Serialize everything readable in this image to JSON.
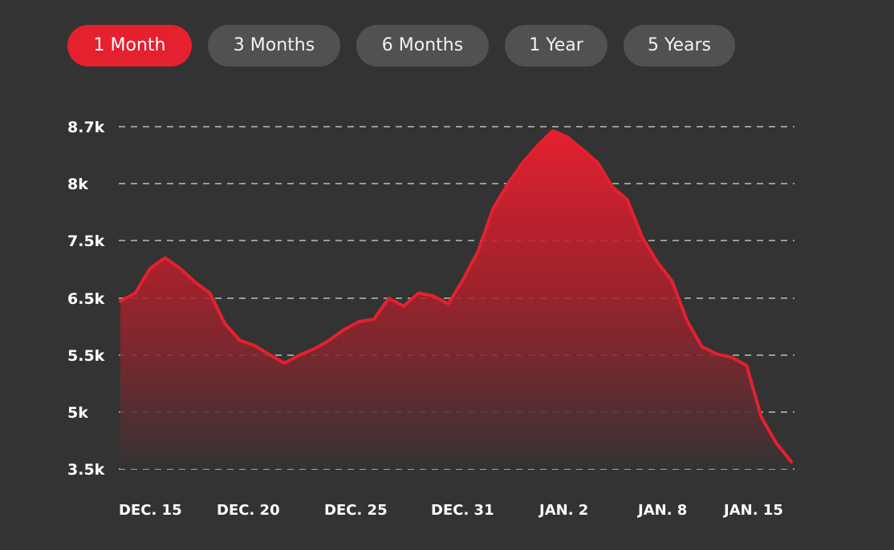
{
  "range_tabs": [
    {
      "label": "1 Month",
      "active": true
    },
    {
      "label": "3 Months",
      "active": false
    },
    {
      "label": "6 Months",
      "active": false
    },
    {
      "label": "1 Year",
      "active": false
    },
    {
      "label": "5 Years",
      "active": false
    }
  ],
  "colors": {
    "background": "#333333",
    "accent": "#e5202f",
    "tab_inactive": "#515151",
    "grid": "#9a9a9a",
    "text": "#ffffff"
  },
  "chart_data": {
    "type": "area",
    "title": "",
    "xlabel": "",
    "ylabel": "",
    "grid": true,
    "grid_style": "dashed",
    "y_ticks": [
      "8.7k",
      "8k",
      "7.5k",
      "6.5k",
      "5.5k",
      "5k",
      "3.5k"
    ],
    "x_ticks": [
      "DEC. 15",
      "DEC. 20",
      "DEC. 25",
      "DEC. 31",
      "JAN. 2",
      "JAN. 8",
      "JAN. 15"
    ],
    "series": [
      {
        "color": "#e5202f",
        "points": [
          {
            "x": "DEC. 15",
            "y": 6.45
          },
          {
            "y": 6.59
          },
          {
            "y": 7.02
          },
          {
            "y": 7.2
          },
          {
            "y": 7.02
          },
          {
            "y": 6.78
          },
          {
            "y": 6.59
          },
          {
            "x": "DEC. 20",
            "y": 6.06
          },
          {
            "y": 5.76
          },
          {
            "y": 5.67
          },
          {
            "y": 5.51
          },
          {
            "y": 5.43
          },
          {
            "y": 5.5
          },
          {
            "y": 5.61
          },
          {
            "y": 5.76
          },
          {
            "x": "DEC. 25",
            "y": 5.95
          },
          {
            "y": 6.09
          },
          {
            "y": 6.13
          },
          {
            "y": 6.5
          },
          {
            "y": 6.36
          },
          {
            "y": 6.59
          },
          {
            "y": 6.54
          },
          {
            "y": 6.4
          },
          {
            "x": "DEC. 31",
            "y": 6.83
          },
          {
            "y": 7.32
          },
          {
            "y": 7.78
          },
          {
            "y": 8.0
          },
          {
            "y": 8.26
          },
          {
            "y": 8.47
          },
          {
            "x": "JAN. 2",
            "y": 8.65
          },
          {
            "y": 8.57
          },
          {
            "y": 8.42
          },
          {
            "y": 8.26
          },
          {
            "y": 7.97
          },
          {
            "x": "JAN. 8",
            "y": 7.86
          },
          {
            "y": 7.53
          },
          {
            "y": 7.13
          },
          {
            "y": 6.8
          },
          {
            "y": 6.11
          },
          {
            "y": 5.65
          },
          {
            "y": 5.52
          },
          {
            "y": 5.48
          },
          {
            "y": 5.41
          },
          {
            "y": 4.86
          },
          {
            "x": "JAN. 15",
            "y": 4.18
          },
          {
            "y": 3.69
          }
        ]
      }
    ]
  }
}
